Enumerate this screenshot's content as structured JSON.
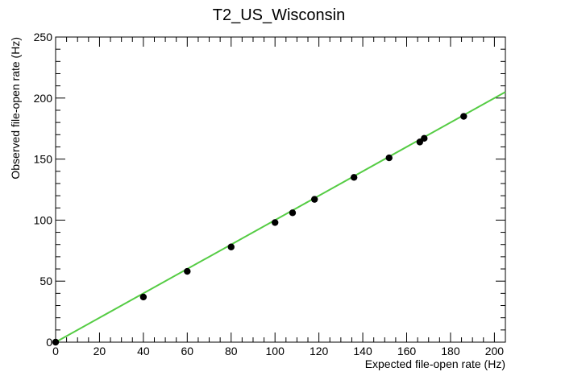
{
  "chart_data": {
    "type": "scatter",
    "title": "T2_US_Wisconsin",
    "xlabel": "Expected file-open rate (Hz)",
    "ylabel": "Observed file-open rate (Hz)",
    "xlim": [
      0,
      205
    ],
    "ylim": [
      0,
      250
    ],
    "xticks": [
      0,
      20,
      40,
      60,
      80,
      100,
      120,
      140,
      160,
      180,
      200
    ],
    "yticks": [
      0,
      50,
      100,
      150,
      200,
      250
    ],
    "grid": false,
    "legend": "none",
    "colors": {
      "points": "#000000",
      "fit": "#55cc44"
    },
    "series": [
      {
        "values": [
          [
            0,
            0
          ],
          [
            40,
            37
          ],
          [
            60,
            58
          ],
          [
            80,
            78
          ],
          [
            100,
            98
          ],
          [
            108,
            106
          ],
          [
            118,
            117
          ],
          [
            136,
            135
          ],
          [
            152,
            151
          ],
          [
            166,
            164
          ],
          [
            168,
            167
          ],
          [
            186,
            185
          ]
        ]
      }
    ],
    "fit_line": {
      "x": [
        0,
        205
      ],
      "y": [
        0,
        205
      ]
    }
  }
}
